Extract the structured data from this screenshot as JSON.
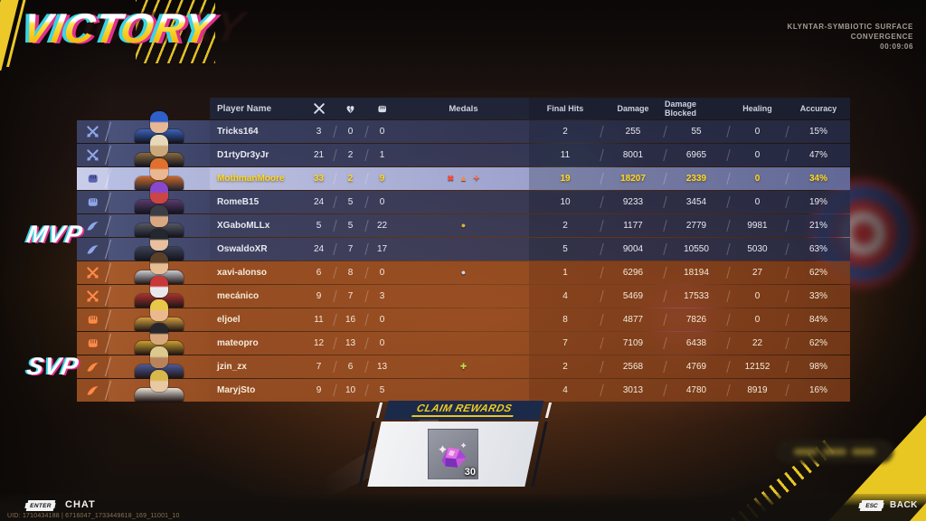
{
  "title": "VICTORY",
  "match": {
    "map": "KLYNTAR-SYMBIOTIC SURFACE",
    "mode": "CONVERGENCE",
    "time": "00:09:06"
  },
  "labels": {
    "mvp": "MVP",
    "svp": "SVP"
  },
  "colors": {
    "accent_yellow": "#e9c722",
    "team_blue": "#40486f",
    "team_orange": "#a85626",
    "mvp_row": "#c9cff0",
    "mvp_text": "#ffd928"
  },
  "table": {
    "headers": {
      "player_name": "Player Name",
      "kda_icons": [
        "eliminations-icon",
        "deaths-icon",
        "assists-icon"
      ],
      "medals": "Medals",
      "final_hits": "Final Hits",
      "damage": "Damage",
      "damage_blocked": "Damage Blocked",
      "healing": "Healing",
      "accuracy": "Accuracy"
    },
    "players": [
      {
        "name": "Tricks164",
        "team": "blue",
        "role": "duelist",
        "mvp": false,
        "kills": 3,
        "deaths": 0,
        "assists": 0,
        "medals": [],
        "final_hits": 2,
        "damage": 255,
        "damage_blocked": 55,
        "healing": 0,
        "accuracy": "15%",
        "portrait": [
          "#2f5fc8",
          "#e8b894",
          "#3a63b8"
        ]
      },
      {
        "name": "D1rtyDr3yJr",
        "team": "blue",
        "role": "duelist",
        "mvp": false,
        "kills": 21,
        "deaths": 2,
        "assists": 1,
        "medals": [],
        "final_hits": 11,
        "damage": 8001,
        "damage_blocked": 6965,
        "healing": 0,
        "accuracy": "47%",
        "portrait": [
          "#e6d8b8",
          "#caa87c",
          "#8a6a3a"
        ]
      },
      {
        "name": "MothmanMoore",
        "team": "blue",
        "role": "vanguard",
        "mvp": true,
        "kills": 33,
        "deaths": 2,
        "assists": 9,
        "medals": [
          {
            "name": "red-x-medal",
            "glyph": "✖",
            "color": "#ff4a38"
          },
          {
            "name": "flame-medal",
            "glyph": "▲",
            "color": "#ff8838"
          },
          {
            "name": "combat-medal",
            "glyph": "✦",
            "color": "#ff6a50"
          }
        ],
        "final_hits": 19,
        "damage": 18207,
        "damage_blocked": 2339,
        "healing": 0,
        "accuracy": "34%",
        "portrait": [
          "#e07030",
          "#eab890",
          "#c86828"
        ]
      },
      {
        "name": "RomeB15",
        "team": "blue",
        "role": "vanguard",
        "mvp": false,
        "kills": 24,
        "deaths": 5,
        "assists": 0,
        "medals": [],
        "final_hits": 10,
        "damage": 9233,
        "damage_blocked": 3454,
        "healing": 0,
        "accuracy": "19%",
        "portrait": [
          "#8848cc",
          "#cc4444",
          "#5a3a6a"
        ]
      },
      {
        "name": "XGaboMLLx",
        "team": "blue",
        "role": "strategist",
        "mvp": false,
        "kills": 5,
        "deaths": 5,
        "assists": 22,
        "medals": [
          {
            "name": "gold-medal",
            "glyph": "●",
            "color": "#d8b343"
          }
        ],
        "final_hits": 2,
        "damage": 1177,
        "damage_blocked": 2779,
        "healing": 9981,
        "accuracy": "21%",
        "portrait": [
          "#3a3d44",
          "#d8a882",
          "#55585f"
        ]
      },
      {
        "name": "OswaldoXR",
        "team": "blue",
        "role": "strategist",
        "mvp": false,
        "kills": 24,
        "deaths": 7,
        "assists": 17,
        "medals": [],
        "final_hits": 5,
        "damage": 9004,
        "damage_blocked": 10550,
        "healing": 5030,
        "accuracy": "63%",
        "portrait": [
          "#23272e",
          "#e8c0a0",
          "#3a4150"
        ]
      },
      {
        "name": "xavi-alonso",
        "team": "orange",
        "role": "duelist",
        "mvp": false,
        "kills": 6,
        "deaths": 8,
        "assists": 0,
        "medals": [
          {
            "name": "silver-medal",
            "glyph": "●",
            "color": "#cfd6e2"
          }
        ],
        "final_hits": 1,
        "damage": 6296,
        "damage_blocked": 18194,
        "healing": 27,
        "accuracy": "62%",
        "portrait": [
          "#5a4028",
          "#e8bc94",
          "#c8ccd4"
        ]
      },
      {
        "name": "mecánico",
        "team": "orange",
        "role": "duelist",
        "mvp": false,
        "kills": 9,
        "deaths": 7,
        "assists": 3,
        "medals": [],
        "final_hits": 4,
        "damage": 5469,
        "damage_blocked": 17533,
        "healing": 0,
        "accuracy": "33%",
        "portrait": [
          "#c83838",
          "#e8e8ec",
          "#a83030"
        ]
      },
      {
        "name": "eljoel",
        "team": "orange",
        "role": "vanguard",
        "mvp": false,
        "kills": 11,
        "deaths": 16,
        "assists": 0,
        "medals": [],
        "final_hits": 8,
        "damage": 4877,
        "damage_blocked": 7826,
        "healing": 0,
        "accuracy": "84%",
        "portrait": [
          "#e8c848",
          "#eab88c",
          "#d0a040"
        ]
      },
      {
        "name": "mateopro",
        "team": "orange",
        "role": "vanguard",
        "mvp": false,
        "kills": 12,
        "deaths": 13,
        "assists": 0,
        "medals": [],
        "final_hits": 7,
        "damage": 7109,
        "damage_blocked": 6438,
        "healing": 22,
        "accuracy": "62%",
        "portrait": [
          "#26262c",
          "#d8a87c",
          "#c8a030"
        ]
      },
      {
        "name": "jzin_zx",
        "team": "orange",
        "role": "strategist",
        "mvp": false,
        "kills": 7,
        "deaths": 6,
        "assists": 13,
        "medals": [
          {
            "name": "healing-medal",
            "glyph": "✚",
            "color": "#cdd850"
          }
        ],
        "final_hits": 2,
        "damage": 2568,
        "damage_blocked": 4769,
        "healing": 12152,
        "accuracy": "98%",
        "portrait": [
          "#ddc890",
          "#b8825a",
          "#4a5a9a"
        ]
      },
      {
        "name": "MaryjSto",
        "team": "orange",
        "role": "strategist",
        "mvp": false,
        "kills": 9,
        "deaths": 10,
        "assists": 5,
        "medals": [],
        "final_hits": 4,
        "damage": 3013,
        "damage_blocked": 4780,
        "healing": 8919,
        "accuracy": "16%",
        "portrait": [
          "#d8b84c",
          "#e8c9a2",
          "#e8e4da"
        ]
      }
    ]
  },
  "rewards": {
    "banner": "CLAIM REWARDS",
    "item_name": "units-crystal",
    "item_count": "30"
  },
  "footer": {
    "chat_key": "ENTER",
    "chat_label": "CHAT",
    "uid": "UID: 1710434188 | 6716047_1733449618_169_11001_10",
    "back_key": "ESC",
    "back_label": "BACK"
  }
}
